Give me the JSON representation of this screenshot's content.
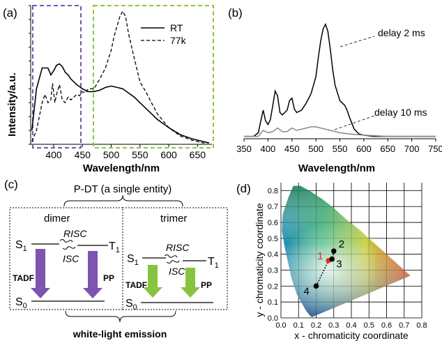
{
  "panel_letters": {
    "a": "(a)",
    "b": "(b)",
    "c": "(c)",
    "d": "(d)"
  },
  "colors": {
    "purple_box": "#6a5bb0",
    "green_box": "#8cc63f",
    "arrow_purple": "#7b55b0",
    "arrow_green": "#86c440",
    "line_b_gray": "#888888",
    "point_red": "#e0301e"
  },
  "chart_data": [
    {
      "id": "a",
      "type": "line",
      "xlabel": "Wavelength/nm",
      "ylabel": "Intensity/a.u.",
      "xlim": [
        360,
        675
      ],
      "xticks": [
        400,
        450,
        500,
        550,
        600,
        650
      ],
      "legend": "top-right",
      "series": [
        {
          "name": "RT",
          "style": "solid",
          "x": [
            362,
            370,
            380,
            390,
            395,
            400,
            405,
            410,
            415,
            420,
            425,
            430,
            440,
            450,
            460,
            470,
            480,
            490,
            500,
            510,
            520,
            530,
            540,
            550,
            560,
            570,
            580,
            600,
            620,
            640,
            660,
            670
          ],
          "y": [
            0.1,
            0.4,
            0.55,
            0.55,
            0.5,
            0.53,
            0.57,
            0.58,
            0.56,
            0.52,
            0.5,
            0.47,
            0.43,
            0.4,
            0.38,
            0.38,
            0.39,
            0.41,
            0.42,
            0.41,
            0.4,
            0.37,
            0.34,
            0.3,
            0.26,
            0.22,
            0.18,
            0.12,
            0.07,
            0.04,
            0.02,
            0.01
          ]
        },
        {
          "name": "77k",
          "style": "dashed",
          "x": [
            362,
            370,
            380,
            385,
            390,
            395,
            398,
            402,
            405,
            410,
            415,
            420,
            425,
            430,
            440,
            445,
            450,
            455,
            460,
            470,
            480,
            490,
            500,
            505,
            510,
            515,
            520,
            525,
            530,
            540,
            550,
            560,
            570,
            580,
            600,
            620,
            640,
            660,
            670
          ],
          "y": [
            0.02,
            0.1,
            0.3,
            0.36,
            0.3,
            0.32,
            0.44,
            0.3,
            0.36,
            0.43,
            0.32,
            0.3,
            0.34,
            0.32,
            0.36,
            0.35,
            0.38,
            0.37,
            0.4,
            0.4,
            0.47,
            0.55,
            0.68,
            0.78,
            0.85,
            0.92,
            0.96,
            0.92,
            0.8,
            0.62,
            0.45,
            0.38,
            0.3,
            0.22,
            0.12,
            0.06,
            0.03,
            0.01,
            0.01
          ]
        }
      ]
    },
    {
      "id": "b",
      "type": "line",
      "xlabel": "Wavelength/nm",
      "ylabel": "",
      "xlim": [
        350,
        750
      ],
      "xticks": [
        350,
        400,
        450,
        500,
        550,
        600,
        650,
        700,
        750
      ],
      "series": [
        {
          "name": "delay 2 ms",
          "color": "#000000",
          "x": [
            350,
            370,
            380,
            385,
            390,
            395,
            400,
            405,
            410,
            415,
            420,
            425,
            430,
            440,
            445,
            450,
            455,
            460,
            470,
            480,
            490,
            500,
            505,
            510,
            515,
            520,
            525,
            530,
            535,
            540,
            550,
            560,
            565,
            570,
            580,
            590,
            600,
            620,
            650,
            700,
            750
          ],
          "y": [
            0.02,
            0.02,
            0.05,
            0.15,
            0.24,
            0.15,
            0.12,
            0.16,
            0.28,
            0.4,
            0.36,
            0.22,
            0.2,
            0.24,
            0.32,
            0.34,
            0.25,
            0.22,
            0.24,
            0.3,
            0.38,
            0.52,
            0.68,
            0.82,
            0.92,
            0.96,
            0.9,
            0.75,
            0.58,
            0.45,
            0.32,
            0.28,
            0.24,
            0.18,
            0.08,
            0.04,
            0.03,
            0.02,
            0.02,
            0.02,
            0.02
          ]
        },
        {
          "name": "delay 10 ms",
          "color": "#888888",
          "x": [
            350,
            380,
            390,
            400,
            410,
            420,
            430,
            440,
            450,
            460,
            470,
            480,
            490,
            500,
            510,
            520,
            530,
            540,
            550,
            570,
            600,
            650,
            700,
            750
          ],
          "y": [
            0.02,
            0.02,
            0.07,
            0.05,
            0.06,
            0.09,
            0.06,
            0.06,
            0.09,
            0.07,
            0.08,
            0.09,
            0.1,
            0.1,
            0.09,
            0.08,
            0.07,
            0.06,
            0.05,
            0.04,
            0.03,
            0.02,
            0.02,
            0.02
          ]
        }
      ]
    },
    {
      "id": "d",
      "type": "scatter",
      "xlabel": "x - chromaticity coordinate",
      "ylabel": "y - chromaticity coordinate",
      "xlim": [
        0.0,
        0.8
      ],
      "ylim": [
        0.0,
        0.85
      ],
      "xticks": [
        0.0,
        0.1,
        0.2,
        0.3,
        0.4,
        0.5,
        0.6,
        0.7,
        0.8
      ],
      "yticks": [
        0.0,
        0.1,
        0.2,
        0.3,
        0.4,
        0.5,
        0.6,
        0.7,
        0.8
      ],
      "points": [
        {
          "label": "1",
          "x": 0.27,
          "y": 0.36,
          "color": "#e0301e"
        },
        {
          "label": "2",
          "x": 0.3,
          "y": 0.42,
          "color": "#000000"
        },
        {
          "label": "3",
          "x": 0.29,
          "y": 0.37,
          "color": "#000000"
        },
        {
          "label": "4",
          "x": 0.2,
          "y": 0.2,
          "color": "#000000"
        }
      ]
    }
  ],
  "panel_a": {
    "legend_rt": "RT",
    "legend_77k": "77k"
  },
  "panel_b": {
    "ann_2ms": "delay 2 ms",
    "ann_10ms": "delay 10 ms"
  },
  "panel_c": {
    "title": "P-DT (a single entity)",
    "dimer": "dimer",
    "trimer": "trimer",
    "s1": "S",
    "s1_sub": "1",
    "t1": "T",
    "t1_sub": "1",
    "s0": "S",
    "s0_sub": "0",
    "risc": "RISC",
    "isc": "ISC",
    "tadf": "TADF",
    "pp": "PP",
    "bottom": "white-light emission"
  }
}
